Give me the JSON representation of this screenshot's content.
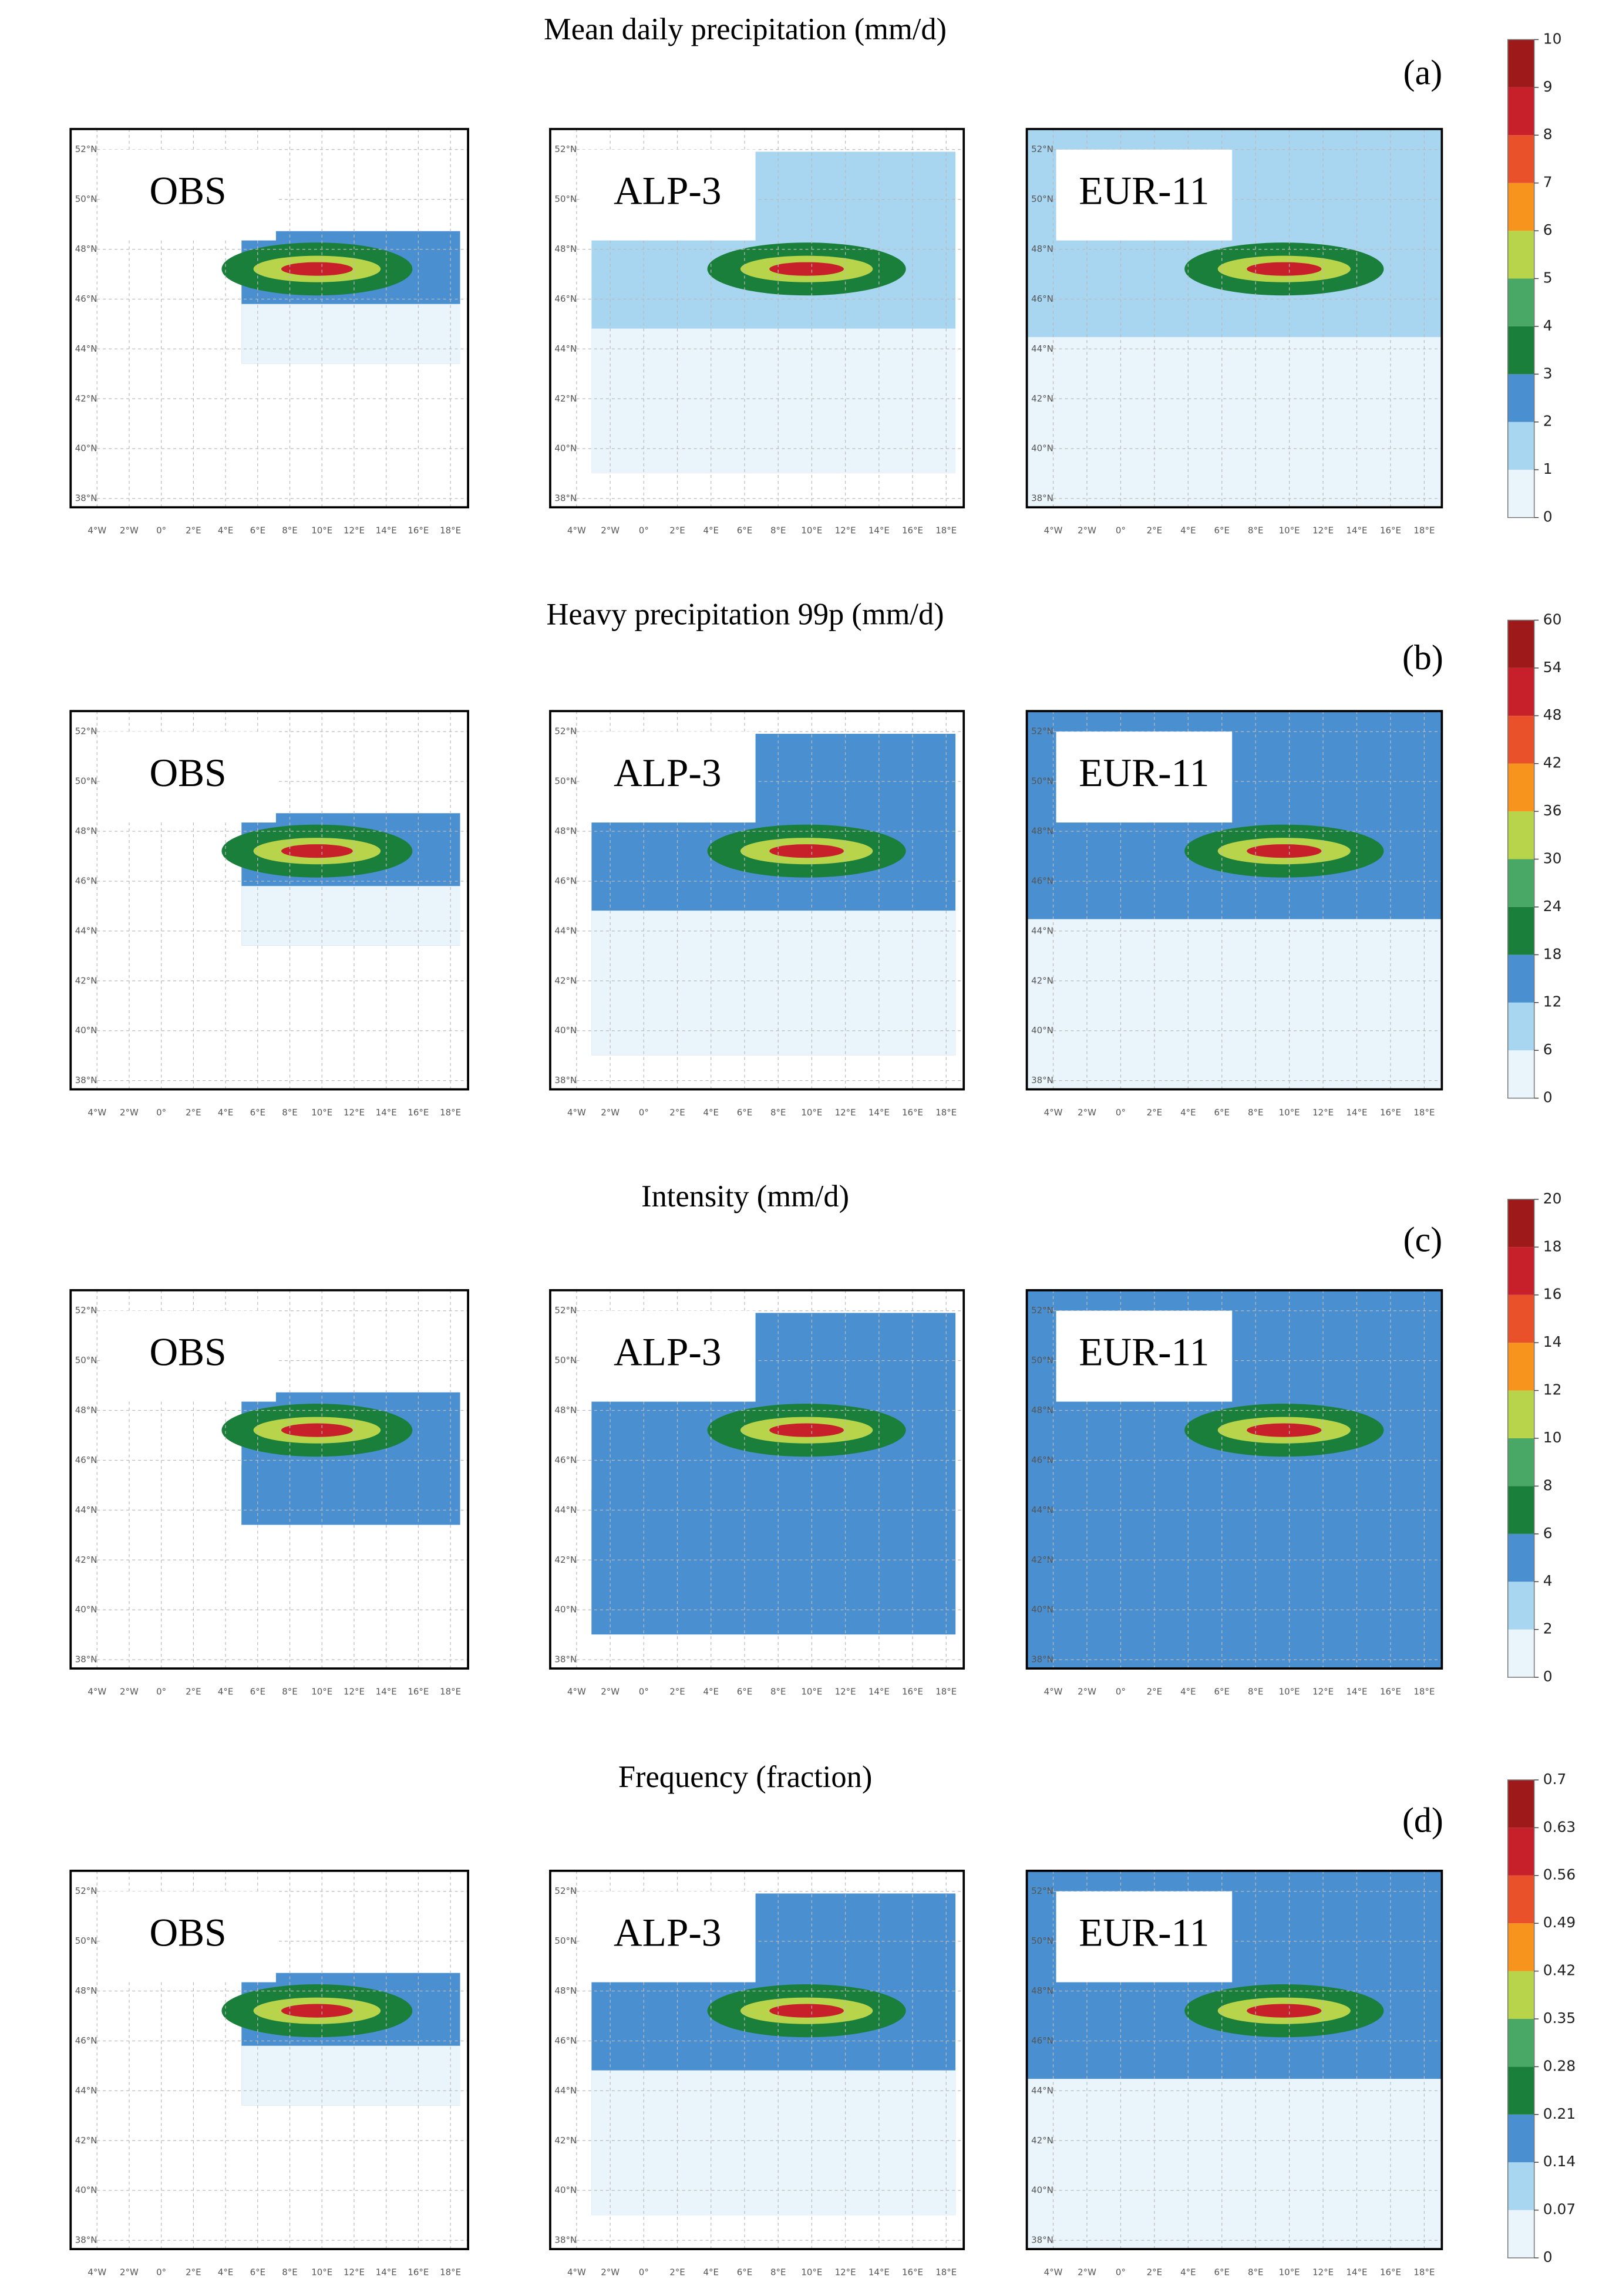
{
  "panels": [
    {
      "title": "Mean daily precipitation (mm/d)",
      "label": "(a)",
      "maps": [
        "OBS",
        "ALP-3",
        "EUR-11"
      ],
      "colorbar": {
        "ticks": [
          0,
          1,
          2,
          3,
          4,
          5,
          6,
          7,
          8,
          9,
          10
        ],
        "colors": [
          "#eaf5fb",
          "#a8d5f0",
          "#4a8fd0",
          "#1a7f3a",
          "#4aa866",
          "#b8d44a",
          "#f7941d",
          "#e8512a",
          "#c8202a",
          "#9e1a1a"
        ]
      }
    },
    {
      "title": "Heavy precipitation 99p (mm/d)",
      "label": "(b)",
      "maps": [
        "OBS",
        "ALP-3",
        "EUR-11"
      ],
      "colorbar": {
        "ticks": [
          0,
          6,
          12,
          18,
          24,
          30,
          36,
          42,
          48,
          54,
          60
        ],
        "colors": [
          "#eaf5fb",
          "#a8d5f0",
          "#4a8fd0",
          "#1a7f3a",
          "#4aa866",
          "#b8d44a",
          "#f7941d",
          "#e8512a",
          "#c8202a",
          "#9e1a1a"
        ]
      }
    },
    {
      "title": "Intensity (mm/d)",
      "label": "(c)",
      "maps": [
        "OBS",
        "ALP-3",
        "EUR-11"
      ],
      "colorbar": {
        "ticks": [
          0,
          2,
          4,
          6,
          8,
          10,
          12,
          14,
          16,
          18,
          20
        ],
        "colors": [
          "#eaf5fb",
          "#a8d5f0",
          "#4a8fd0",
          "#1a7f3a",
          "#4aa866",
          "#b8d44a",
          "#f7941d",
          "#e8512a",
          "#c8202a",
          "#9e1a1a"
        ]
      }
    },
    {
      "title": "Frequency (fraction)",
      "label": "(d)",
      "maps": [
        "OBS",
        "ALP-3",
        "EUR-11"
      ],
      "colorbar": {
        "ticks": [
          0,
          0.07,
          0.14,
          0.21,
          0.28,
          0.35,
          0.42,
          0.49,
          0.56,
          0.63,
          0.7
        ],
        "colors": [
          "#eaf5fb",
          "#a8d5f0",
          "#4a8fd0",
          "#1a7f3a",
          "#4aa866",
          "#b8d44a",
          "#f7941d",
          "#e8512a",
          "#c8202a",
          "#9e1a1a"
        ]
      }
    }
  ],
  "lat_labels": [
    "52°N",
    "50°N",
    "48°N",
    "46°N",
    "44°N",
    "42°N",
    "40°N",
    "38°N"
  ],
  "lon_labels": [
    "4°W",
    "2°W",
    "0°",
    "2°E",
    "4°E",
    "6°E",
    "8°E",
    "10°E",
    "12°E",
    "14°E",
    "16°E",
    "18°E"
  ]
}
